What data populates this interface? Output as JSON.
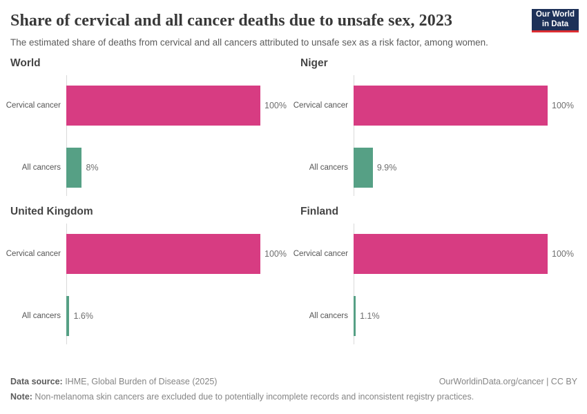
{
  "header": {
    "title": "Share of cervical and all cancer deaths due to unsafe sex, 2023",
    "subtitle": "The estimated share of deaths from cervical and all cancers attributed to unsafe sex as a risk factor, among women.",
    "logo": {
      "line1": "Our World",
      "line2": "in Data"
    }
  },
  "chart_data": {
    "type": "bar",
    "orientation": "horizontal",
    "unit": "%",
    "xlim": [
      0,
      100
    ],
    "grid": false,
    "legend": false,
    "categories": [
      "Cervical cancer",
      "All cancers"
    ],
    "bar_colors": [
      "#d73c82",
      "#56a085"
    ],
    "panels": [
      {
        "title": "World",
        "values": [
          100,
          8
        ],
        "labels": [
          "100%",
          "8%"
        ]
      },
      {
        "title": "Niger",
        "values": [
          100,
          9.9
        ],
        "labels": [
          "100%",
          "9.9%"
        ]
      },
      {
        "title": "United Kingdom",
        "values": [
          100,
          1.6
        ],
        "labels": [
          "100%",
          "1.6%"
        ]
      },
      {
        "title": "Finland",
        "values": [
          100,
          1.1
        ],
        "labels": [
          "100%",
          "1.1%"
        ]
      }
    ]
  },
  "footer": {
    "datasource_label": "Data source:",
    "datasource_text": " IHME, Global Burden of Disease (2025)",
    "rights": "OurWorldinData.org/cancer | CC BY",
    "note_label": "Note:",
    "note_text": " Non-melanoma skin cancers are excluded due to potentially incomplete records and inconsistent registry practices."
  },
  "colors": {
    "cervical_bar": "#d73c82",
    "all_cancers_bar": "#56a085",
    "axis_line": "#d9d9d9",
    "logo_background": "#1d3158",
    "logo_stripe": "#dc2e32"
  }
}
